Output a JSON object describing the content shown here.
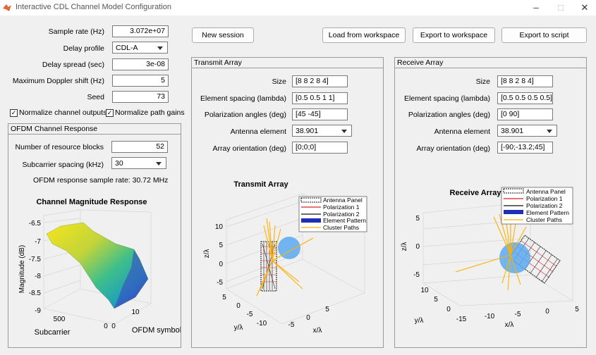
{
  "window": {
    "title": "Interactive CDL Channel Model Configuration"
  },
  "params": {
    "sample_rate_label": "Sample rate (Hz)",
    "sample_rate_value": "3.072e+07",
    "delay_profile_label": "Delay profile",
    "delay_profile_value": "CDL-A",
    "delay_spread_label": "Delay spread (sec)",
    "delay_spread_value": "3e-08",
    "doppler_label": "Maximum Doppler shift (Hz)",
    "doppler_value": "5",
    "seed_label": "Seed",
    "seed_value": "73",
    "normalize_outputs_label": "Normalize channel outputs",
    "normalize_outputs_checked": true,
    "normalize_gains_label": "Normalize path gains",
    "normalize_gains_checked": true
  },
  "buttons": {
    "new_session": "New session",
    "load": "Load from workspace",
    "export_ws": "Export to workspace",
    "export_script": "Export to script"
  },
  "ofdm": {
    "title": "OFDM Channel Response",
    "rb_label": "Number of resource blocks",
    "rb_value": "52",
    "scs_label": "Subcarrier spacing (kHz)",
    "scs_value": "30",
    "rate_text": "OFDM response sample rate: 30.72 MHz",
    "plot": {
      "title": "Channel Magnitude Response",
      "zlabel": "Magnitude (dB)",
      "xlabel": "Subcarrier",
      "ylabel": "OFDM symbol",
      "zticks": [
        "-6.5",
        "-7",
        "-7.5",
        "-8",
        "-8.5",
        "-9"
      ],
      "xticks": [
        "500",
        "0"
      ],
      "yticks": [
        "0",
        "10"
      ]
    }
  },
  "tx": {
    "title": "Transmit Array",
    "size_label": "Size",
    "size_value": "[8 8 2 8 4]",
    "spacing_label": "Element spacing (lambda)",
    "spacing_value": "[0.5 0.5 1 1]",
    "pol_label": "Polarization angles (deg)",
    "pol_value": "[45 -45]",
    "elem_label": "Antenna element",
    "elem_value": "38.901",
    "orient_label": "Array orientation (deg)",
    "orient_value": "[0;0;0]",
    "plot": {
      "title": "Transmit Array",
      "zlabel": "z/λ",
      "ylabel": "y/λ",
      "xlabel": "x/λ",
      "zticks": [
        "10",
        "5",
        "0",
        "-5"
      ],
      "yticks": [
        "5",
        "0",
        "-5",
        "-10"
      ],
      "xticks": [
        "-5",
        "0",
        "5"
      ]
    }
  },
  "rx": {
    "title": "Receive Array",
    "size_label": "Size",
    "size_value": "[8 8 2 8 4]",
    "spacing_label": "Element spacing (lambda)",
    "spacing_value": "[0.5 0.5 0.5 0.5]",
    "pol_label": "Polarization angles (deg)",
    "pol_value": "[0 90]",
    "elem_label": "Antenna element",
    "elem_value": "38.901",
    "orient_label": "Array orientation (deg)",
    "orient_value": "[-90;-13.2;45]",
    "plot": {
      "title": "Receive Array",
      "zlabel": "z/λ",
      "ylabel": "y/λ",
      "xlabel": "x/λ",
      "zticks": [
        "5",
        "0",
        "-5"
      ],
      "yticks": [
        "10",
        "5",
        "0"
      ],
      "xticks": [
        "-15",
        "-10",
        "-5",
        "0",
        "5"
      ]
    }
  },
  "legend": [
    "Antenna Panel",
    "Polarization 1",
    "Polarization 2",
    "Element Pattern",
    "Cluster Paths"
  ],
  "colors": {
    "accent_yellow": "#ffb000",
    "pattern_blue": "#1d2fb5",
    "sphere_blue": "#5aa9f0"
  }
}
